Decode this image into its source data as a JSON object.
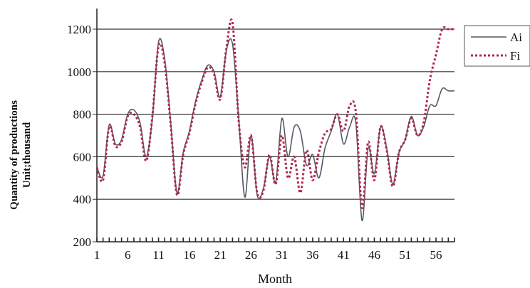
{
  "chart_data": {
    "type": "line",
    "title": "",
    "xlabel": "Month",
    "ylabel_line1": "Quantity of productions",
    "ylabel_line2": "Unit;thousand",
    "ylim": [
      200,
      1200
    ],
    "xlim": [
      1,
      59
    ],
    "yticks": [
      200,
      400,
      600,
      800,
      1000,
      1200
    ],
    "xticks": [
      1,
      6,
      11,
      16,
      21,
      26,
      31,
      36,
      41,
      46,
      51,
      56
    ],
    "grid": "horizontal",
    "legend_position": "right",
    "x": [
      1,
      2,
      3,
      4,
      5,
      6,
      7,
      8,
      9,
      10,
      11,
      12,
      13,
      14,
      15,
      16,
      17,
      18,
      19,
      20,
      21,
      22,
      23,
      24,
      25,
      26,
      27,
      28,
      29,
      30,
      31,
      32,
      33,
      34,
      35,
      36,
      37,
      38,
      39,
      40,
      41,
      42,
      43,
      44,
      45,
      46,
      47,
      48,
      49,
      50,
      51,
      52,
      53,
      54,
      55,
      56,
      57,
      58,
      59
    ],
    "series": [
      {
        "name": "Ai",
        "color": "#555a66",
        "style": "solid",
        "values": [
          550,
          510,
          750,
          660,
          680,
          800,
          820,
          760,
          600,
          780,
          1140,
          1060,
          750,
          430,
          620,
          720,
          860,
          960,
          1030,
          1000,
          880,
          1100,
          1130,
          780,
          410,
          700,
          420,
          450,
          600,
          480,
          780,
          600,
          740,
          720,
          560,
          610,
          500,
          640,
          720,
          800,
          660,
          740,
          760,
          300,
          640,
          520,
          740,
          640,
          470,
          620,
          680,
          790,
          700,
          740,
          840,
          840,
          920,
          910,
          910
        ]
      },
      {
        "name": "Fi",
        "color": "#b0284a",
        "style": "dotted",
        "values": [
          550,
          490,
          740,
          650,
          670,
          790,
          800,
          740,
          580,
          790,
          1120,
          1040,
          740,
          420,
          610,
          710,
          850,
          950,
          1020,
          990,
          870,
          1110,
          1230,
          770,
          550,
          700,
          430,
          440,
          610,
          470,
          700,
          500,
          600,
          430,
          630,
          490,
          620,
          710,
          730,
          800,
          720,
          840,
          810,
          360,
          670,
          490,
          740,
          630,
          460,
          620,
          680,
          780,
          700,
          760,
          960,
          1080,
          1200,
          1200,
          1200
        ]
      }
    ]
  }
}
